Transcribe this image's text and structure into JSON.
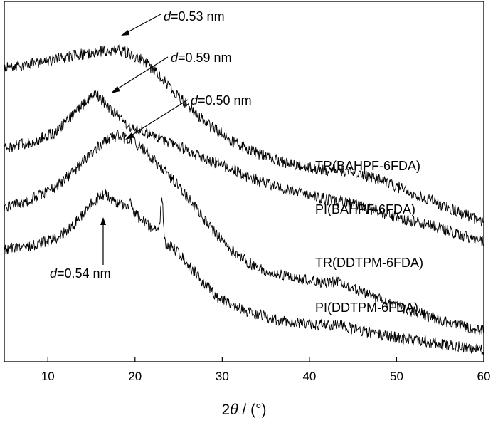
{
  "chart_data": {
    "type": "line",
    "title": "",
    "xlabel_prefix": "2",
    "xlabel_symbol": "θ",
    "xlabel_suffix": " / (°)",
    "ylabel": "",
    "xlim": [
      5,
      60
    ],
    "xticks": [
      10,
      20,
      30,
      40,
      50,
      60
    ],
    "grid": false,
    "legend": "none",
    "series": [
      {
        "name": "TR(BAHPF-6FDA)",
        "color": "#000000",
        "points": [
          [
            5,
            95
          ],
          [
            8,
            90
          ],
          [
            11,
            83
          ],
          [
            14,
            76
          ],
          [
            16,
            72
          ],
          [
            17.5,
            70
          ],
          [
            19,
            73
          ],
          [
            21,
            85
          ],
          [
            23,
            110
          ],
          [
            25,
            135
          ],
          [
            27,
            160
          ],
          [
            29,
            180
          ],
          [
            31,
            198
          ],
          [
            34,
            215
          ],
          [
            37,
            228
          ],
          [
            40,
            235
          ],
          [
            42,
            240
          ],
          [
            43,
            238
          ],
          [
            45,
            242
          ],
          [
            48,
            252
          ],
          [
            52,
            272
          ],
          [
            56,
            292
          ],
          [
            60,
            312
          ]
        ]
      },
      {
        "name": "PI(BAHPF-6FDA)",
        "color": "#000000",
        "points": [
          [
            5,
            208
          ],
          [
            8,
            200
          ],
          [
            11,
            185
          ],
          [
            13,
            160
          ],
          [
            14.5,
            140
          ],
          [
            15.5,
            132
          ],
          [
            17,
            150
          ],
          [
            19,
            175
          ],
          [
            21,
            185
          ],
          [
            23,
            195
          ],
          [
            25,
            205
          ],
          [
            27,
            218
          ],
          [
            30,
            232
          ],
          [
            33,
            248
          ],
          [
            36,
            262
          ],
          [
            39,
            272
          ],
          [
            42,
            280
          ],
          [
            44,
            283
          ],
          [
            46,
            290
          ],
          [
            50,
            305
          ],
          [
            55,
            320
          ],
          [
            60,
            340
          ]
        ]
      },
      {
        "name": "TR(DDTPM-6FDA)",
        "color": "#000000",
        "points": [
          [
            5,
            290
          ],
          [
            7,
            285
          ],
          [
            9,
            275
          ],
          [
            11,
            262
          ],
          [
            13,
            240
          ],
          [
            15,
            215
          ],
          [
            16.5,
            198
          ],
          [
            18,
            190
          ],
          [
            19.5,
            196
          ],
          [
            21,
            210
          ],
          [
            23,
            235
          ],
          [
            25,
            262
          ],
          [
            27,
            292
          ],
          [
            29,
            325
          ],
          [
            31,
            350
          ],
          [
            33,
            370
          ],
          [
            36,
            385
          ],
          [
            39,
            392
          ],
          [
            42,
            398
          ],
          [
            43,
            395
          ],
          [
            45,
            405
          ],
          [
            48,
            420
          ],
          [
            52,
            438
          ],
          [
            56,
            452
          ],
          [
            60,
            465
          ]
        ]
      },
      {
        "name": "PI(DDTPM-6FDA)",
        "color": "#000000",
        "points": [
          [
            5,
            350
          ],
          [
            8,
            345
          ],
          [
            11,
            335
          ],
          [
            13,
            315
          ],
          [
            15,
            285
          ],
          [
            16.5,
            272
          ],
          [
            18,
            285
          ],
          [
            19,
            290
          ],
          [
            19.5,
            285
          ],
          [
            20,
            300
          ],
          [
            21,
            312
          ],
          [
            22,
            320
          ],
          [
            22.8,
            318
          ],
          [
            23.1,
            275
          ],
          [
            23.4,
            340
          ],
          [
            25,
            355
          ],
          [
            27,
            385
          ],
          [
            29,
            412
          ],
          [
            31,
            428
          ],
          [
            33,
            438
          ],
          [
            36,
            448
          ],
          [
            39,
            453
          ],
          [
            42,
            457
          ],
          [
            43,
            455
          ],
          [
            45,
            462
          ],
          [
            48,
            470
          ],
          [
            52,
            478
          ],
          [
            56,
            485
          ],
          [
            60,
            492
          ]
        ]
      }
    ],
    "series_labels": [
      {
        "text": "TR(BAHPF-6FDA)"
      },
      {
        "text": "PI(BAHPF-6FDA)"
      },
      {
        "text": "TR(DDTPM-6FDA)"
      },
      {
        "text": "PI(DDTPM-6FDA)"
      }
    ],
    "annotations": [
      {
        "d": "d",
        "text": "=0.53 nm",
        "x": 17.5
      },
      {
        "d": "d",
        "text": "=0.59 nm",
        "x": 15.5
      },
      {
        "d": "d",
        "text": "=0.50 nm",
        "x": 18
      },
      {
        "d": "d",
        "text": "=0.54 nm",
        "x": 16.5
      }
    ]
  }
}
